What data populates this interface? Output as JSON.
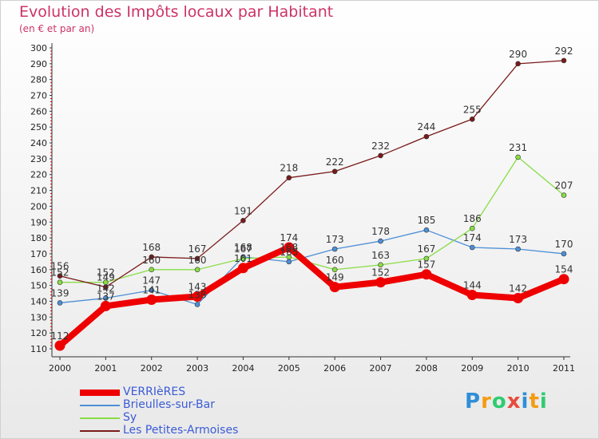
{
  "title": "Evolution des Impôts locaux par Habitant",
  "subtitle": "(en € et par an)",
  "logo_text": "Proxiti",
  "chart_data": {
    "type": "line",
    "title": "Evolution des Impôts locaux par Habitant",
    "subtitle": "(en € et par an)",
    "xlabel": "",
    "ylabel": "",
    "ylim": [
      110,
      300
    ],
    "ytick_step": 10,
    "grid": false,
    "legend_position": "bottom-left",
    "x": [
      "2000",
      "2001",
      "2002",
      "2003",
      "2004",
      "2005",
      "2006",
      "2007",
      "2008",
      "2009",
      "2010",
      "2011"
    ],
    "series": [
      {
        "name": "VERRIèRES",
        "color": "#ee0000",
        "values": [
          112,
          137,
          141,
          143,
          161,
          174,
          149,
          152,
          157,
          144,
          142,
          154
        ],
        "labels": [
          "112",
          "137",
          "141",
          "143",
          "161",
          "174",
          "149",
          "152",
          "157",
          "144",
          "142",
          "154"
        ]
      },
      {
        "name": "Brieulles-sur-Bar",
        "color": "#4d8fd6",
        "values": [
          139,
          142,
          147,
          138,
          168,
          165,
          173,
          178,
          185,
          174,
          173,
          170
        ],
        "labels": [
          "139",
          "142",
          "147",
          "138",
          "168",
          "165",
          "173",
          "178",
          "185",
          "174",
          "173",
          "170"
        ]
      },
      {
        "name": "Sy",
        "color": "#88dd44",
        "values": [
          152,
          152,
          160,
          160,
          167,
          168,
          160,
          163,
          167,
          186,
          231,
          207
        ],
        "labels": [
          "152",
          "152",
          "160",
          "160",
          "167",
          "168",
          "160",
          "163",
          "167",
          "186",
          "231",
          "207"
        ]
      },
      {
        "name": "Les Petites-Armoises",
        "color": "#7a1a1a",
        "values": [
          156,
          149,
          168,
          167,
          191,
          218,
          222,
          232,
          244,
          255,
          290,
          292
        ],
        "labels": [
          "156",
          "149",
          "168",
          "167",
          "191",
          "218",
          "222",
          "232",
          "244",
          "255",
          "290",
          "292"
        ]
      }
    ]
  }
}
